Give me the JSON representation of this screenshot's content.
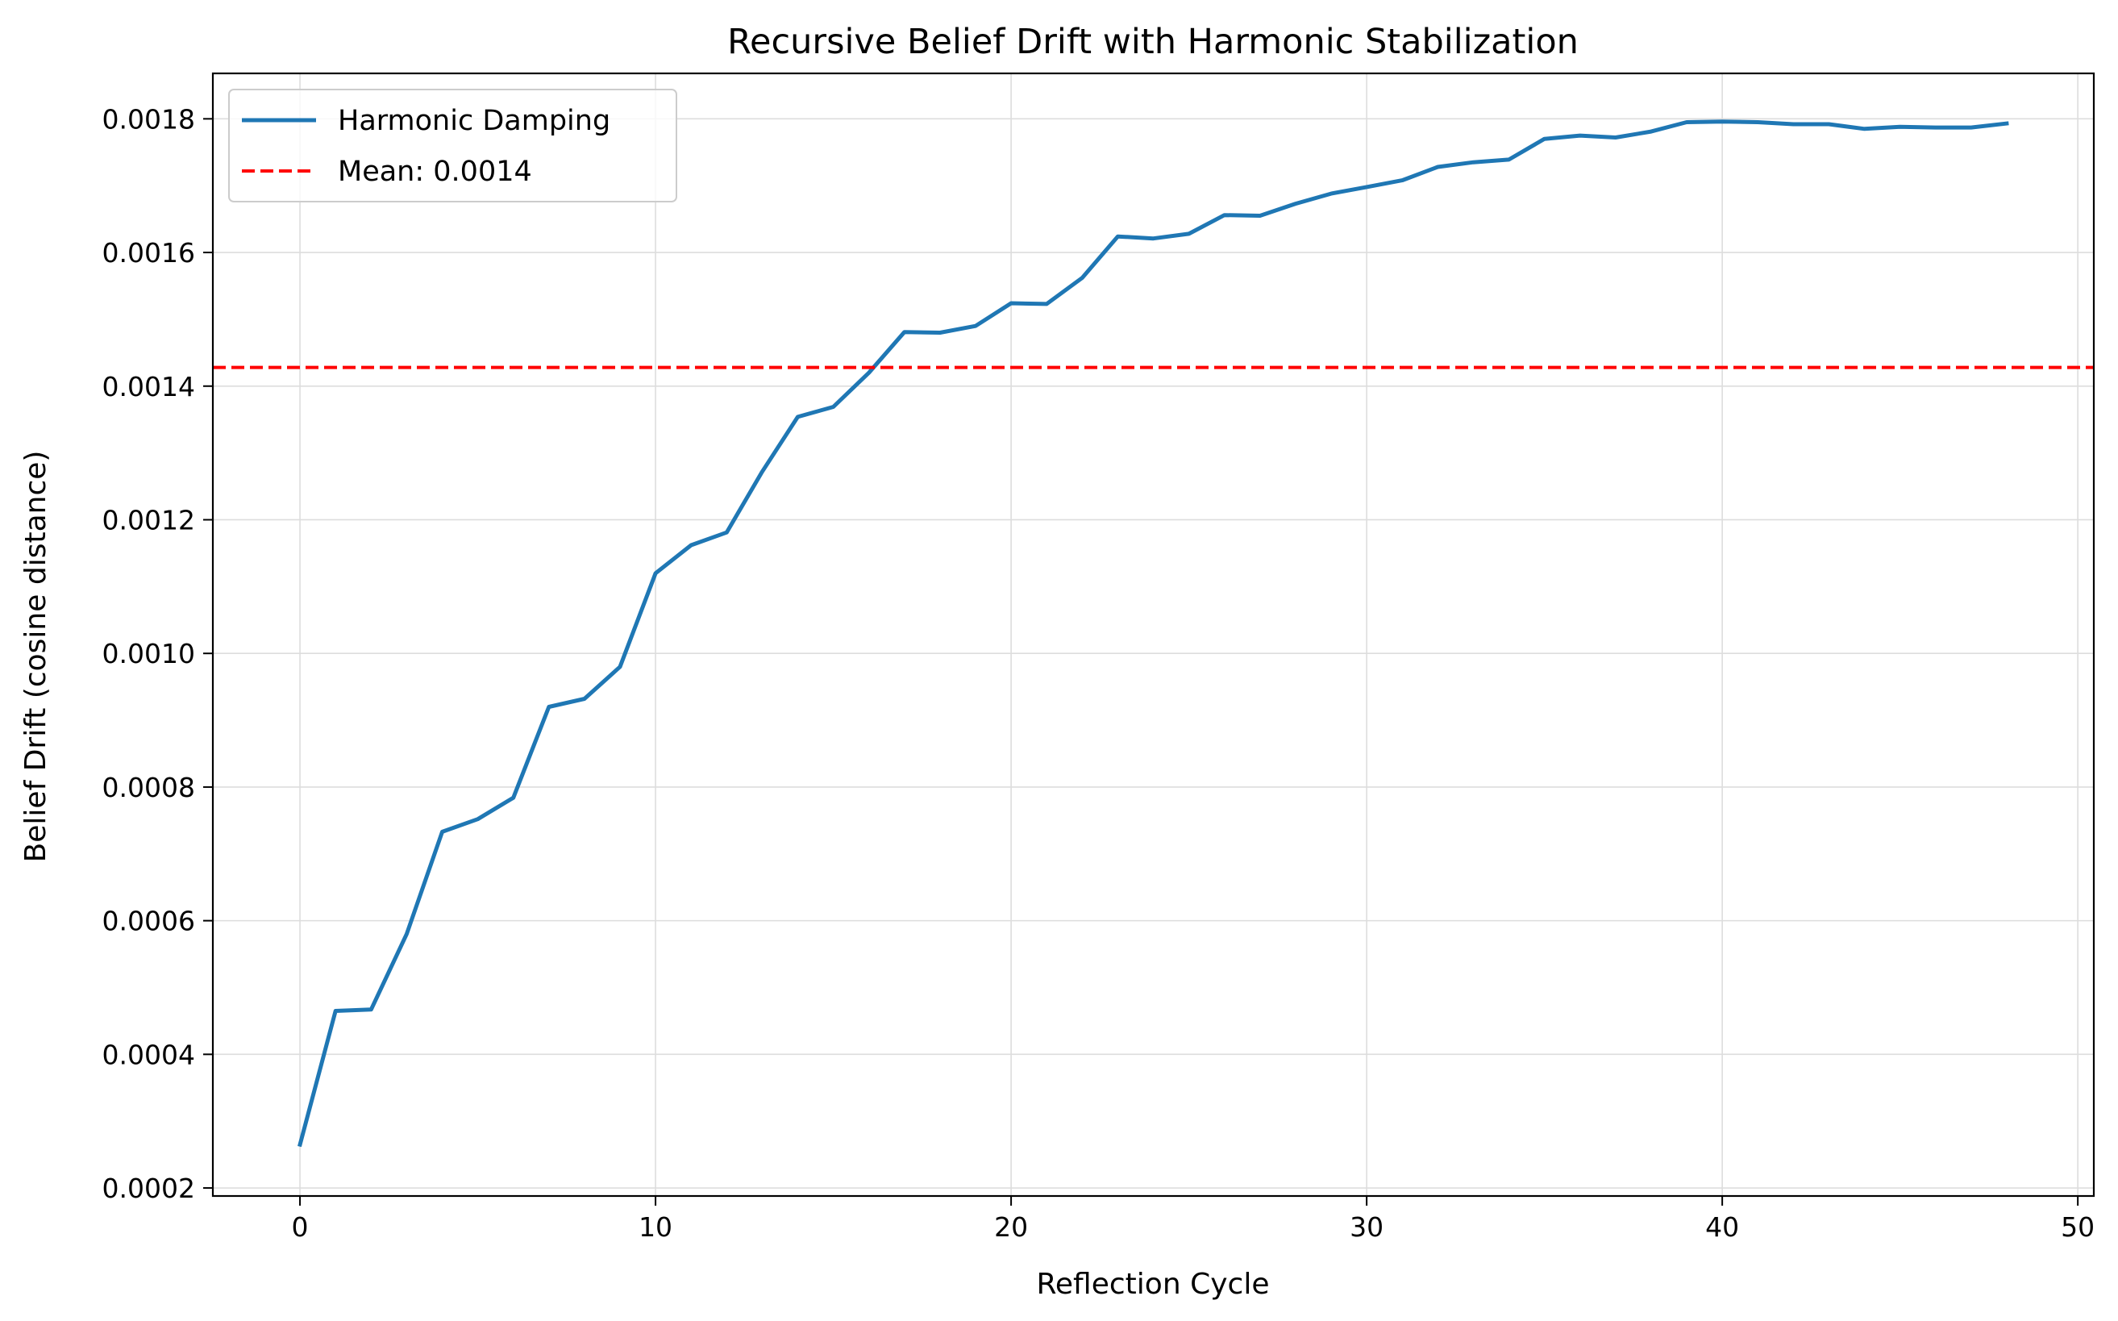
{
  "chart_data": {
    "type": "line",
    "title": "Recursive Belief Drift with Harmonic Stabilization",
    "xlabel": "Reflection Cycle",
    "ylabel": "Belief Drift (cosine distance)",
    "xlim": [
      -2.45,
      50.45
    ],
    "ylim": [
      0.000188,
      0.001868
    ],
    "xticks": [
      0,
      10,
      20,
      30,
      40,
      50
    ],
    "xtick_labels": [
      "0",
      "10",
      "20",
      "30",
      "40",
      "50"
    ],
    "yticks": [
      0.0002,
      0.0004,
      0.0006,
      0.0008,
      0.001,
      0.0012,
      0.0014,
      0.0016,
      0.0018
    ],
    "ytick_labels": [
      "0.0002",
      "0.0004",
      "0.0006",
      "0.0008",
      "0.0010",
      "0.0012",
      "0.0014",
      "0.0016",
      "0.0018"
    ],
    "grid": true,
    "legend_position": "upper-left",
    "series": [
      {
        "name": "Harmonic Damping",
        "color": "#1f77b4",
        "style": "solid",
        "x": [
          0,
          1,
          2,
          3,
          4,
          5,
          6,
          7,
          8,
          9,
          10,
          11,
          12,
          13,
          14,
          15,
          16,
          17,
          18,
          19,
          20,
          21,
          22,
          23,
          24,
          25,
          26,
          27,
          28,
          29,
          30,
          31,
          32,
          33,
          34,
          35,
          36,
          37,
          38,
          39,
          40,
          41,
          42,
          43,
          44,
          45,
          46,
          47,
          48
        ],
        "y": [
          0.000265,
          0.000465,
          0.000467,
          0.00058,
          0.000733,
          0.000752,
          0.000784,
          0.00092,
          0.000932,
          0.00098,
          0.00112,
          0.001162,
          0.001181,
          0.001272,
          0.001354,
          0.001369,
          0.00142,
          0.001481,
          0.00148,
          0.00149,
          0.001524,
          0.001523,
          0.001562,
          0.001624,
          0.001621,
          0.001628,
          0.001656,
          0.001655,
          0.001673,
          0.001688,
          0.001698,
          0.001708,
          0.001728,
          0.001735,
          0.001739,
          0.00177,
          0.001775,
          0.001772,
          0.001781,
          0.001795,
          0.001796,
          0.001795,
          0.001792,
          0.001792,
          0.001785,
          0.001788,
          0.001787,
          0.001787,
          0.001793
        ]
      },
      {
        "name": "Mean: 0.0014",
        "color": "#ff0000",
        "style": "dashed",
        "hline": 0.001428
      }
    ]
  }
}
